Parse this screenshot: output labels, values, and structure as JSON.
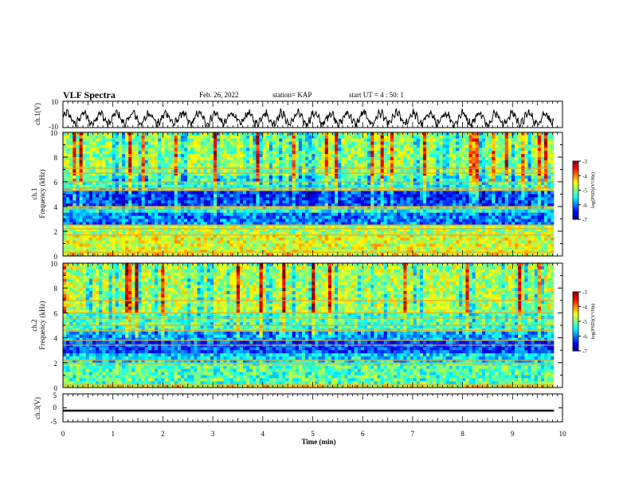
{
  "header": {
    "title": "VLF Spectra",
    "date": "Feb. 26, 2022",
    "station": "station= KAP",
    "start_ut": "start  UT =   4 : 50: 1"
  },
  "chart_data": [
    {
      "type": "line",
      "panel": "ch1-waveform",
      "ylabel": "ch.1(V)",
      "ylim": [
        -10,
        10
      ],
      "y_tick_labels": [
        "10",
        "-10"
      ],
      "x_unit": "min",
      "xlim": [
        0,
        10
      ],
      "x_data_end": 9.83,
      "description_of_trace": "noisy quasi-periodic oscillation",
      "waveform": {
        "mean": -3,
        "amplitude": 4,
        "period_min": 0.33,
        "noise": 2.5
      }
    },
    {
      "type": "heatmap",
      "panel": "ch1-spectrogram",
      "ylabel": "ch.1\nFrequency (kHz)",
      "ylabel_lines": [
        "ch.1",
        "Frequency (kHz)"
      ],
      "ylim": [
        0,
        10
      ],
      "y_tick_labels": [
        "0",
        "2",
        "4",
        "6",
        "8",
        "10"
      ],
      "xlim": [
        0,
        10
      ],
      "x_data_end": 9.83,
      "colorbar": {
        "label": "log(PSD)(V²/Hz)",
        "range": [
          -7,
          -3
        ],
        "tick_labels": [
          "-3",
          "-4",
          "-5",
          "-6",
          "-7"
        ],
        "colormap": "jet"
      },
      "bands": [
        {
          "f_from": 0,
          "f_to": 0.3,
          "level": -4.5
        },
        {
          "f_from": 0.3,
          "f_to": 1.8,
          "level": -4.6
        },
        {
          "f_from": 1.8,
          "f_to": 2.6,
          "level": -4.8
        },
        {
          "f_from": 2.6,
          "f_to": 3.5,
          "level": -6.0
        },
        {
          "f_from": 3.5,
          "f_to": 4.1,
          "level": -5.4
        },
        {
          "f_from": 4.1,
          "f_to": 5.3,
          "level": -6.2
        },
        {
          "f_from": 5.3,
          "f_to": 6.6,
          "level": -5.3
        },
        {
          "f_from": 6.6,
          "f_to": 10,
          "level": -4.9
        }
      ],
      "lines_khz": [
        0.3,
        1.7,
        2.2,
        2.5,
        3.8,
        4.0,
        5.3,
        5.5,
        6.0,
        6.7,
        7.1
      ]
    },
    {
      "type": "heatmap",
      "panel": "ch2-spectrogram",
      "ylabel": "ch.2\nFrequency (kHz)",
      "ylabel_lines": [
        "ch.2",
        "Frequency (kHz)"
      ],
      "ylim": [
        0,
        10
      ],
      "y_tick_labels": [
        "0",
        "2",
        "4",
        "6",
        "8",
        "10"
      ],
      "xlim": [
        0,
        10
      ],
      "x_data_end": 9.83,
      "colorbar": {
        "label": "log(PSD)(V²/Hz)",
        "range": [
          -7,
          -3
        ],
        "tick_labels": [
          "-3",
          "-4",
          "-5",
          "-6",
          "-7"
        ],
        "colormap": "jet"
      },
      "bands": [
        {
          "f_from": 0,
          "f_to": 0.3,
          "level": -4.5
        },
        {
          "f_from": 0.3,
          "f_to": 1.9,
          "level": -5.2
        },
        {
          "f_from": 1.9,
          "f_to": 2.8,
          "level": -5.6
        },
        {
          "f_from": 2.8,
          "f_to": 3.8,
          "level": -6.2
        },
        {
          "f_from": 3.8,
          "f_to": 4.5,
          "level": -5.8
        },
        {
          "f_from": 4.5,
          "f_to": 6.0,
          "level": -5.2
        },
        {
          "f_from": 6.0,
          "f_to": 10,
          "level": -4.8
        }
      ],
      "lines_khz": [
        0.2,
        1.9,
        2.2,
        3.4,
        3.8,
        4.6,
        5.0,
        5.6,
        6.0,
        7.0
      ]
    },
    {
      "type": "line",
      "panel": "ch3-signal",
      "ylabel": "ch.3(V)",
      "ylim": [
        -5,
        5
      ],
      "y_tick_labels": [
        "5",
        "0",
        "-5"
      ],
      "xlim": [
        0,
        10
      ],
      "x_data_end": 9.83,
      "xlabel": "Time  (min)",
      "x_tick_labels": [
        "0",
        "1",
        "2",
        "3",
        "4",
        "5",
        "6",
        "7",
        "8",
        "9",
        "10"
      ],
      "signal": {
        "level": -1,
        "thickness": 0.7
      }
    }
  ]
}
